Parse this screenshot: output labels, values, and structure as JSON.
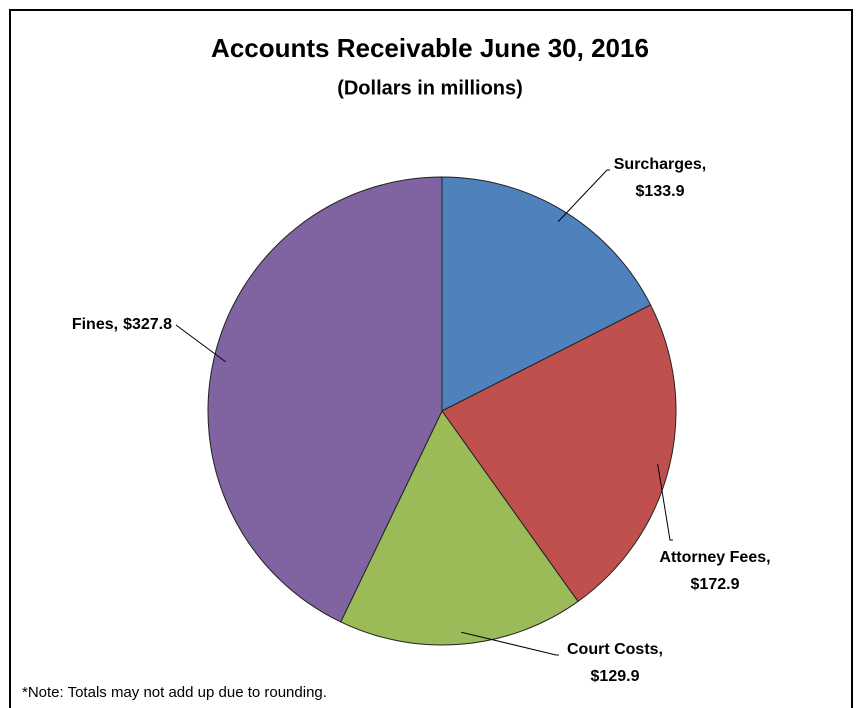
{
  "chart_data": {
    "type": "pie",
    "title": "Accounts Receivable June 30, 2016",
    "subtitle": "(Dollars in millions)",
    "categories": [
      "Surcharges,",
      "Attorney Fees,",
      "Court Costs,",
      "Fines,"
    ],
    "values": [
      133.9,
      172.9,
      129.9,
      327.8
    ],
    "value_labels": [
      "$133.9",
      "$172.9",
      "$129.9",
      "$327.8"
    ],
    "colors": [
      "#4f81bd",
      "#c0504d",
      "#9bbb59",
      "#8064a2"
    ],
    "note": "*Note: Totals may not add up due to rounding."
  }
}
